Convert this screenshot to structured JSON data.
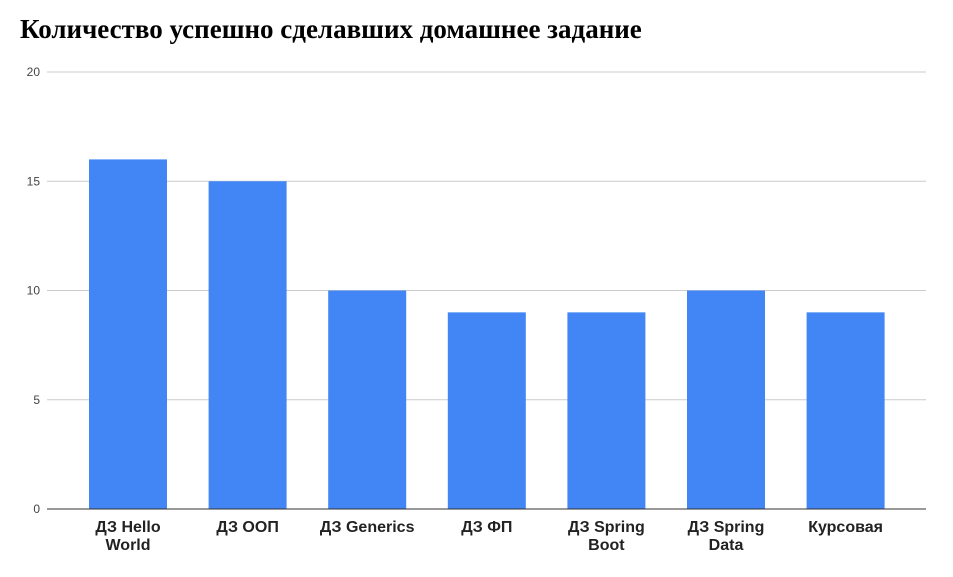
{
  "chart_data": {
    "type": "bar",
    "title": "Количество успешно сделавших домашнее задание",
    "xlabel": "",
    "ylabel": "",
    "categories": [
      [
        "ДЗ Hello",
        "World"
      ],
      [
        "ДЗ ООП"
      ],
      [
        "ДЗ Generics"
      ],
      [
        "ДЗ ФП"
      ],
      [
        "ДЗ Spring",
        "Boot"
      ],
      [
        "ДЗ Spring",
        "Data"
      ],
      [
        "Курсовая"
      ]
    ],
    "values": [
      16,
      15,
      10,
      9,
      9,
      10,
      9
    ],
    "ylim": [
      0,
      20
    ],
    "yticks": [
      "0",
      "5",
      "10",
      "15",
      "20"
    ],
    "grid": true,
    "bar_color": "#4285f4"
  }
}
